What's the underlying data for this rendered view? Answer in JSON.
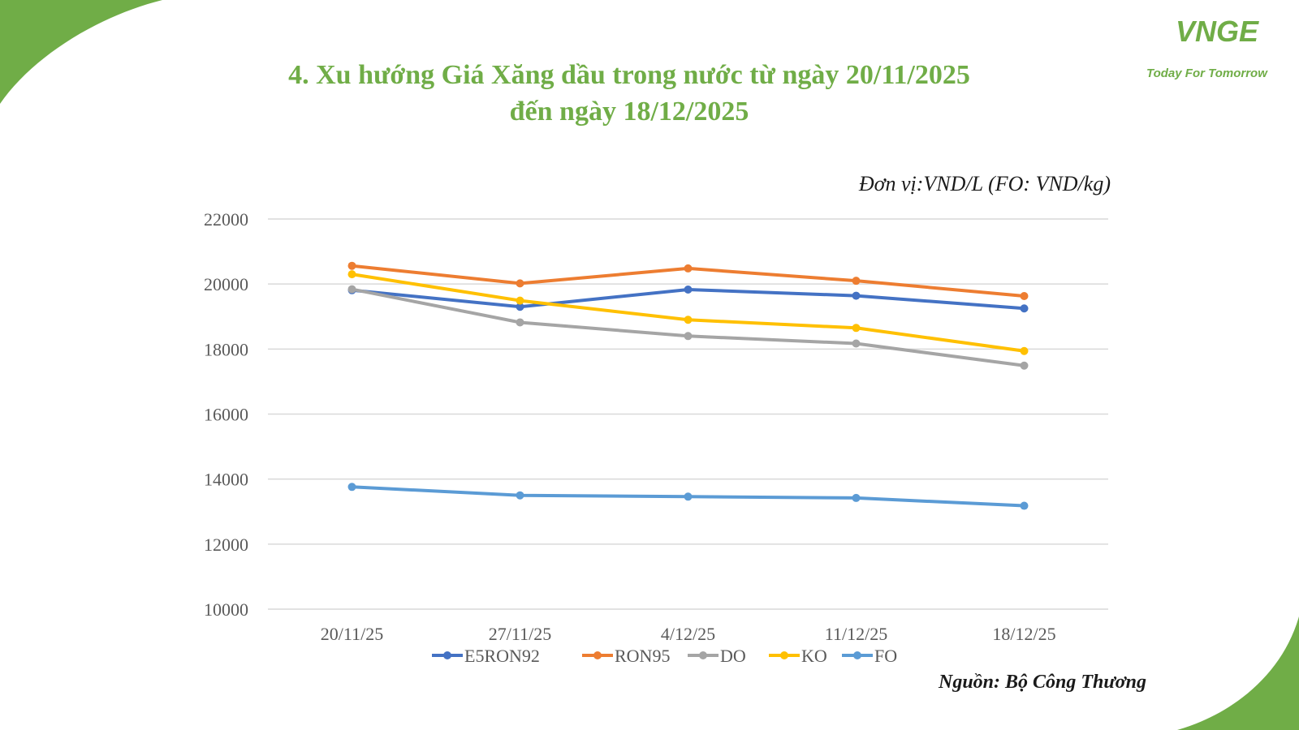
{
  "header": {
    "title_line1": "4. Xu hướng Giá Xăng dầu trong nước từ ngày 20/11/2025",
    "title_line2": "đến ngày 18/12/2025"
  },
  "logo": {
    "mark": "VNGE",
    "tagline": "Today For Tomorrow"
  },
  "unit_note": "Đơn vị:VND/L (FO: VND/kg)",
  "source_note": "Nguồn: Bộ Công Thương",
  "colors": {
    "accent_green": "#70ad47"
  },
  "chart_data": {
    "type": "line",
    "title": "",
    "xlabel": "",
    "ylabel": "",
    "categories": [
      "20/11/25",
      "27/11/25",
      "4/12/25",
      "11/12/25",
      "18/12/25"
    ],
    "ylim": [
      10000,
      22000
    ],
    "yticks": [
      10000,
      12000,
      14000,
      16000,
      18000,
      20000,
      22000
    ],
    "grid": true,
    "legend_position": "bottom",
    "series": [
      {
        "name": "E5RON92",
        "color": "#4472c4",
        "values": [
          19810,
          19300,
          19830,
          19640,
          19250
        ]
      },
      {
        "name": "RON95",
        "color": "#ed7d31",
        "values": [
          20560,
          20020,
          20480,
          20100,
          19630
        ]
      },
      {
        "name": "DO",
        "color": "#a5a5a5",
        "values": [
          19840,
          18820,
          18400,
          18170,
          17490
        ]
      },
      {
        "name": "KO",
        "color": "#ffc000",
        "values": [
          20300,
          19490,
          18900,
          18650,
          17940
        ]
      },
      {
        "name": "FO",
        "color": "#5b9bd5",
        "values": [
          13760,
          13500,
          13460,
          13420,
          13180
        ]
      }
    ]
  }
}
